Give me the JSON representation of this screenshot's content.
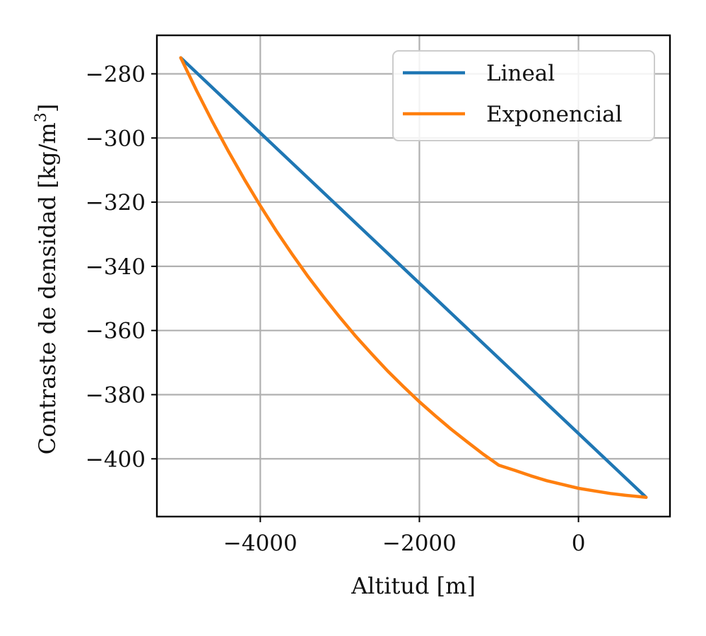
{
  "chart_data": {
    "type": "line",
    "xlabel": "Altitud [m]",
    "ylabel_main": "Contraste de densidad [kg/m",
    "ylabel_sup": "3",
    "ylabel_close": "]",
    "xlim": [
      -5300,
      1150
    ],
    "ylim": [
      -418,
      -268
    ],
    "xticks": [
      -4000,
      -2000,
      0
    ],
    "xtick_labels": [
      "−4000",
      "−2000",
      "0"
    ],
    "yticks": [
      -280,
      -300,
      -320,
      -340,
      -360,
      -380,
      -400
    ],
    "ytick_labels": [
      "−280",
      "−300",
      "−320",
      "−340",
      "−360",
      "−380",
      "−400"
    ],
    "grid": true,
    "legend_position": "top-right",
    "series": [
      {
        "name": "Lineal",
        "color": "#1f77b4",
        "x": [
          -5000,
          850
        ],
        "y": [
          -275,
          -412
        ]
      },
      {
        "name": "Exponencial",
        "color": "#ff7f0e",
        "x": [
          -5000,
          -4800,
          -4600,
          -4400,
          -4200,
          -4000,
          -3800,
          -3600,
          -3400,
          -3200,
          -3000,
          -2800,
          -2600,
          -2400,
          -2200,
          -2000,
          -1800,
          -1600,
          -1400,
          -1200,
          -1000,
          -800,
          -600,
          -400,
          -200,
          0,
          200,
          400,
          600,
          850
        ],
        "y": [
          -275,
          -285.3,
          -295.0,
          -304.2,
          -312.9,
          -321.1,
          -328.9,
          -336.2,
          -343.2,
          -349.7,
          -355.9,
          -361.8,
          -367.3,
          -372.6,
          -377.5,
          -382.2,
          -386.6,
          -390.8,
          -394.7,
          -398.5,
          -402.0,
          -403.6,
          -405.3,
          -406.8,
          -408.0,
          -409.2,
          -410.0,
          -410.8,
          -411.4,
          -412.0
        ]
      }
    ]
  }
}
